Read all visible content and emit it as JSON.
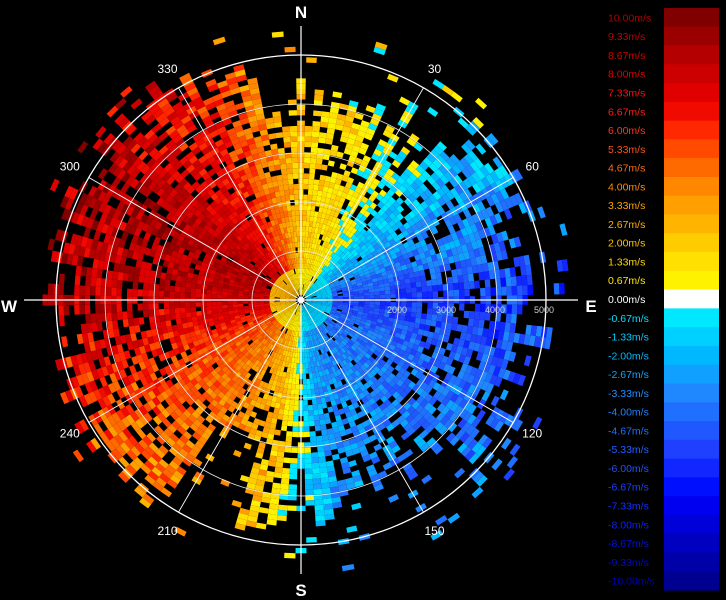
{
  "chart_data": {
    "type": "heatmap",
    "subtype": "polar-radial-velocity",
    "title": "",
    "cardinal_labels": {
      "north": "N",
      "east": "E",
      "south": "S",
      "west": "W"
    },
    "angle_labels": [
      "30",
      "60",
      "120",
      "150",
      "210",
      "240",
      "300",
      "330"
    ],
    "range_rings": [
      1000,
      2000,
      3000,
      4000,
      5000
    ],
    "range_ring_labels": [
      "2000",
      "3000",
      "4000",
      "5000"
    ],
    "max_range": 5000,
    "grid": true,
    "colorbar": {
      "placement": "right",
      "labels": [
        "10.00m/s",
        "9.33m/s",
        "8.67m/s",
        "8.00m/s",
        "7.33m/s",
        "6.67m/s",
        "6.00m/s",
        "5.33m/s",
        "4.67m/s",
        "4.00m/s",
        "3.33m/s",
        "2.67m/s",
        "2.00m/s",
        "1.33m/s",
        "0.67m/s",
        "0.00m/s",
        "-0.67m/s",
        "-1.33m/s",
        "-2.00m/s",
        "-2.67m/s",
        "-3.33m/s",
        "-4.00m/s",
        "-4.67m/s",
        "-5.33m/s",
        "-6.00m/s",
        "-6.67m/s",
        "-7.33m/s",
        "-8.00m/s",
        "-8.67m/s",
        "-9.33m/s",
        "-10.00m/s"
      ],
      "colors": [
        "#800000",
        "#9a0000",
        "#b40000",
        "#cc0000",
        "#e00000",
        "#f00a00",
        "#ff2800",
        "#ff4a00",
        "#ff6a00",
        "#ff8800",
        "#ffa000",
        "#ffb400",
        "#ffcc00",
        "#ffe000",
        "#fff200",
        "#ffffff",
        "#00e8ff",
        "#00d0ff",
        "#00b8ff",
        "#10a0ff",
        "#2088ff",
        "#2070ff",
        "#2058ff",
        "#2040ff",
        "#1028ff",
        "#0010ff",
        "#0000f0",
        "#0000d8",
        "#0000c0",
        "#0000a8",
        "#000090"
      ],
      "label_colors": [
        "#b00000",
        "#c00000",
        "#d00000",
        "#e00000",
        "#ff1010",
        "#ff2010",
        "#ff3818",
        "#ff5018",
        "#ff6a10",
        "#ff8c00",
        "#ffa000",
        "#ffb000",
        "#ffc400",
        "#ffd800",
        "#ffe800",
        "#ffffff",
        "#00e0ff",
        "#00ccff",
        "#00b8ff",
        "#10a4ff",
        "#2090ff",
        "#2080ff",
        "#2070ff",
        "#2060ff",
        "#2050ff",
        "#1a40ff",
        "#1030ff",
        "#0820ff",
        "#0010e0",
        "#0008c8",
        "#0000b8"
      ]
    },
    "velocity_sectors": [
      {
        "direction_deg": 0,
        "velocity_ms": 2.0
      },
      {
        "direction_deg": 30,
        "velocity_ms": 0.67
      },
      {
        "direction_deg": 45,
        "velocity_ms": -1.33
      },
      {
        "direction_deg": 60,
        "velocity_ms": -2.67
      },
      {
        "direction_deg": 90,
        "velocity_ms": -5.33
      },
      {
        "direction_deg": 120,
        "velocity_ms": -4.0
      },
      {
        "direction_deg": 150,
        "velocity_ms": -3.33
      },
      {
        "direction_deg": 170,
        "velocity_ms": -2.67
      },
      {
        "direction_deg": 190,
        "velocity_ms": 2.0
      },
      {
        "direction_deg": 210,
        "velocity_ms": 4.0
      },
      {
        "direction_deg": 240,
        "velocity_ms": 5.33
      },
      {
        "direction_deg": 270,
        "velocity_ms": 8.0
      },
      {
        "direction_deg": 300,
        "velocity_ms": 8.67
      },
      {
        "direction_deg": 330,
        "velocity_ms": 6.67
      }
    ]
  }
}
